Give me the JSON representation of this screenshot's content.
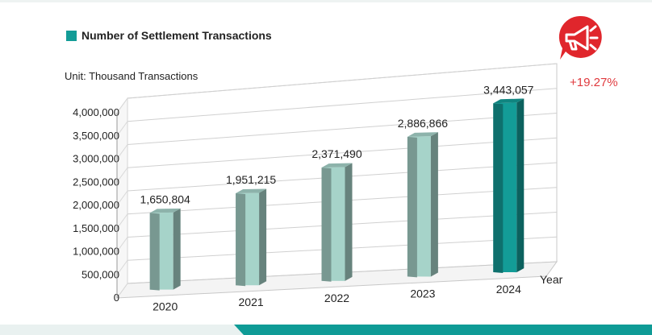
{
  "legend": {
    "label": "Number of Settlement Transactions",
    "color": "#139c97"
  },
  "unit": "Unit: Thousand Transactions",
  "growth": {
    "text": "+19.27%",
    "color": "#e03a3e"
  },
  "megaphone": {
    "icon": "megaphone-icon",
    "color": "#e0262c"
  },
  "chart_data": {
    "type": "bar",
    "title": "Number of Settlement Transactions",
    "xlabel": "Year",
    "ylabel": "Unit: Thousand Transactions",
    "categories": [
      "2020",
      "2021",
      "2022",
      "2023",
      "2024"
    ],
    "values": [
      1650804,
      1951215,
      2371490,
      2886866,
      3443057
    ],
    "value_labels": [
      "1,650,804",
      "1,951,215",
      "2,371,490",
      "2,886,866",
      "3,443,057"
    ],
    "yticks": [
      0,
      500000,
      1000000,
      1500000,
      2000000,
      2500000,
      3000000,
      3500000,
      4000000
    ],
    "ytick_labels": [
      "0",
      "500,000",
      "1,000,000",
      "1,500,000",
      "2,000,000",
      "2,500,000",
      "3,000,000",
      "3,500,000",
      "4,000,000"
    ],
    "ylim": [
      0,
      4000000
    ],
    "grid": true,
    "bar_colors": [
      "#a6d3c9",
      "#a6d3c9",
      "#a6d3c9",
      "#a6d3c9",
      "#139c97"
    ],
    "highlight_index": 4
  }
}
